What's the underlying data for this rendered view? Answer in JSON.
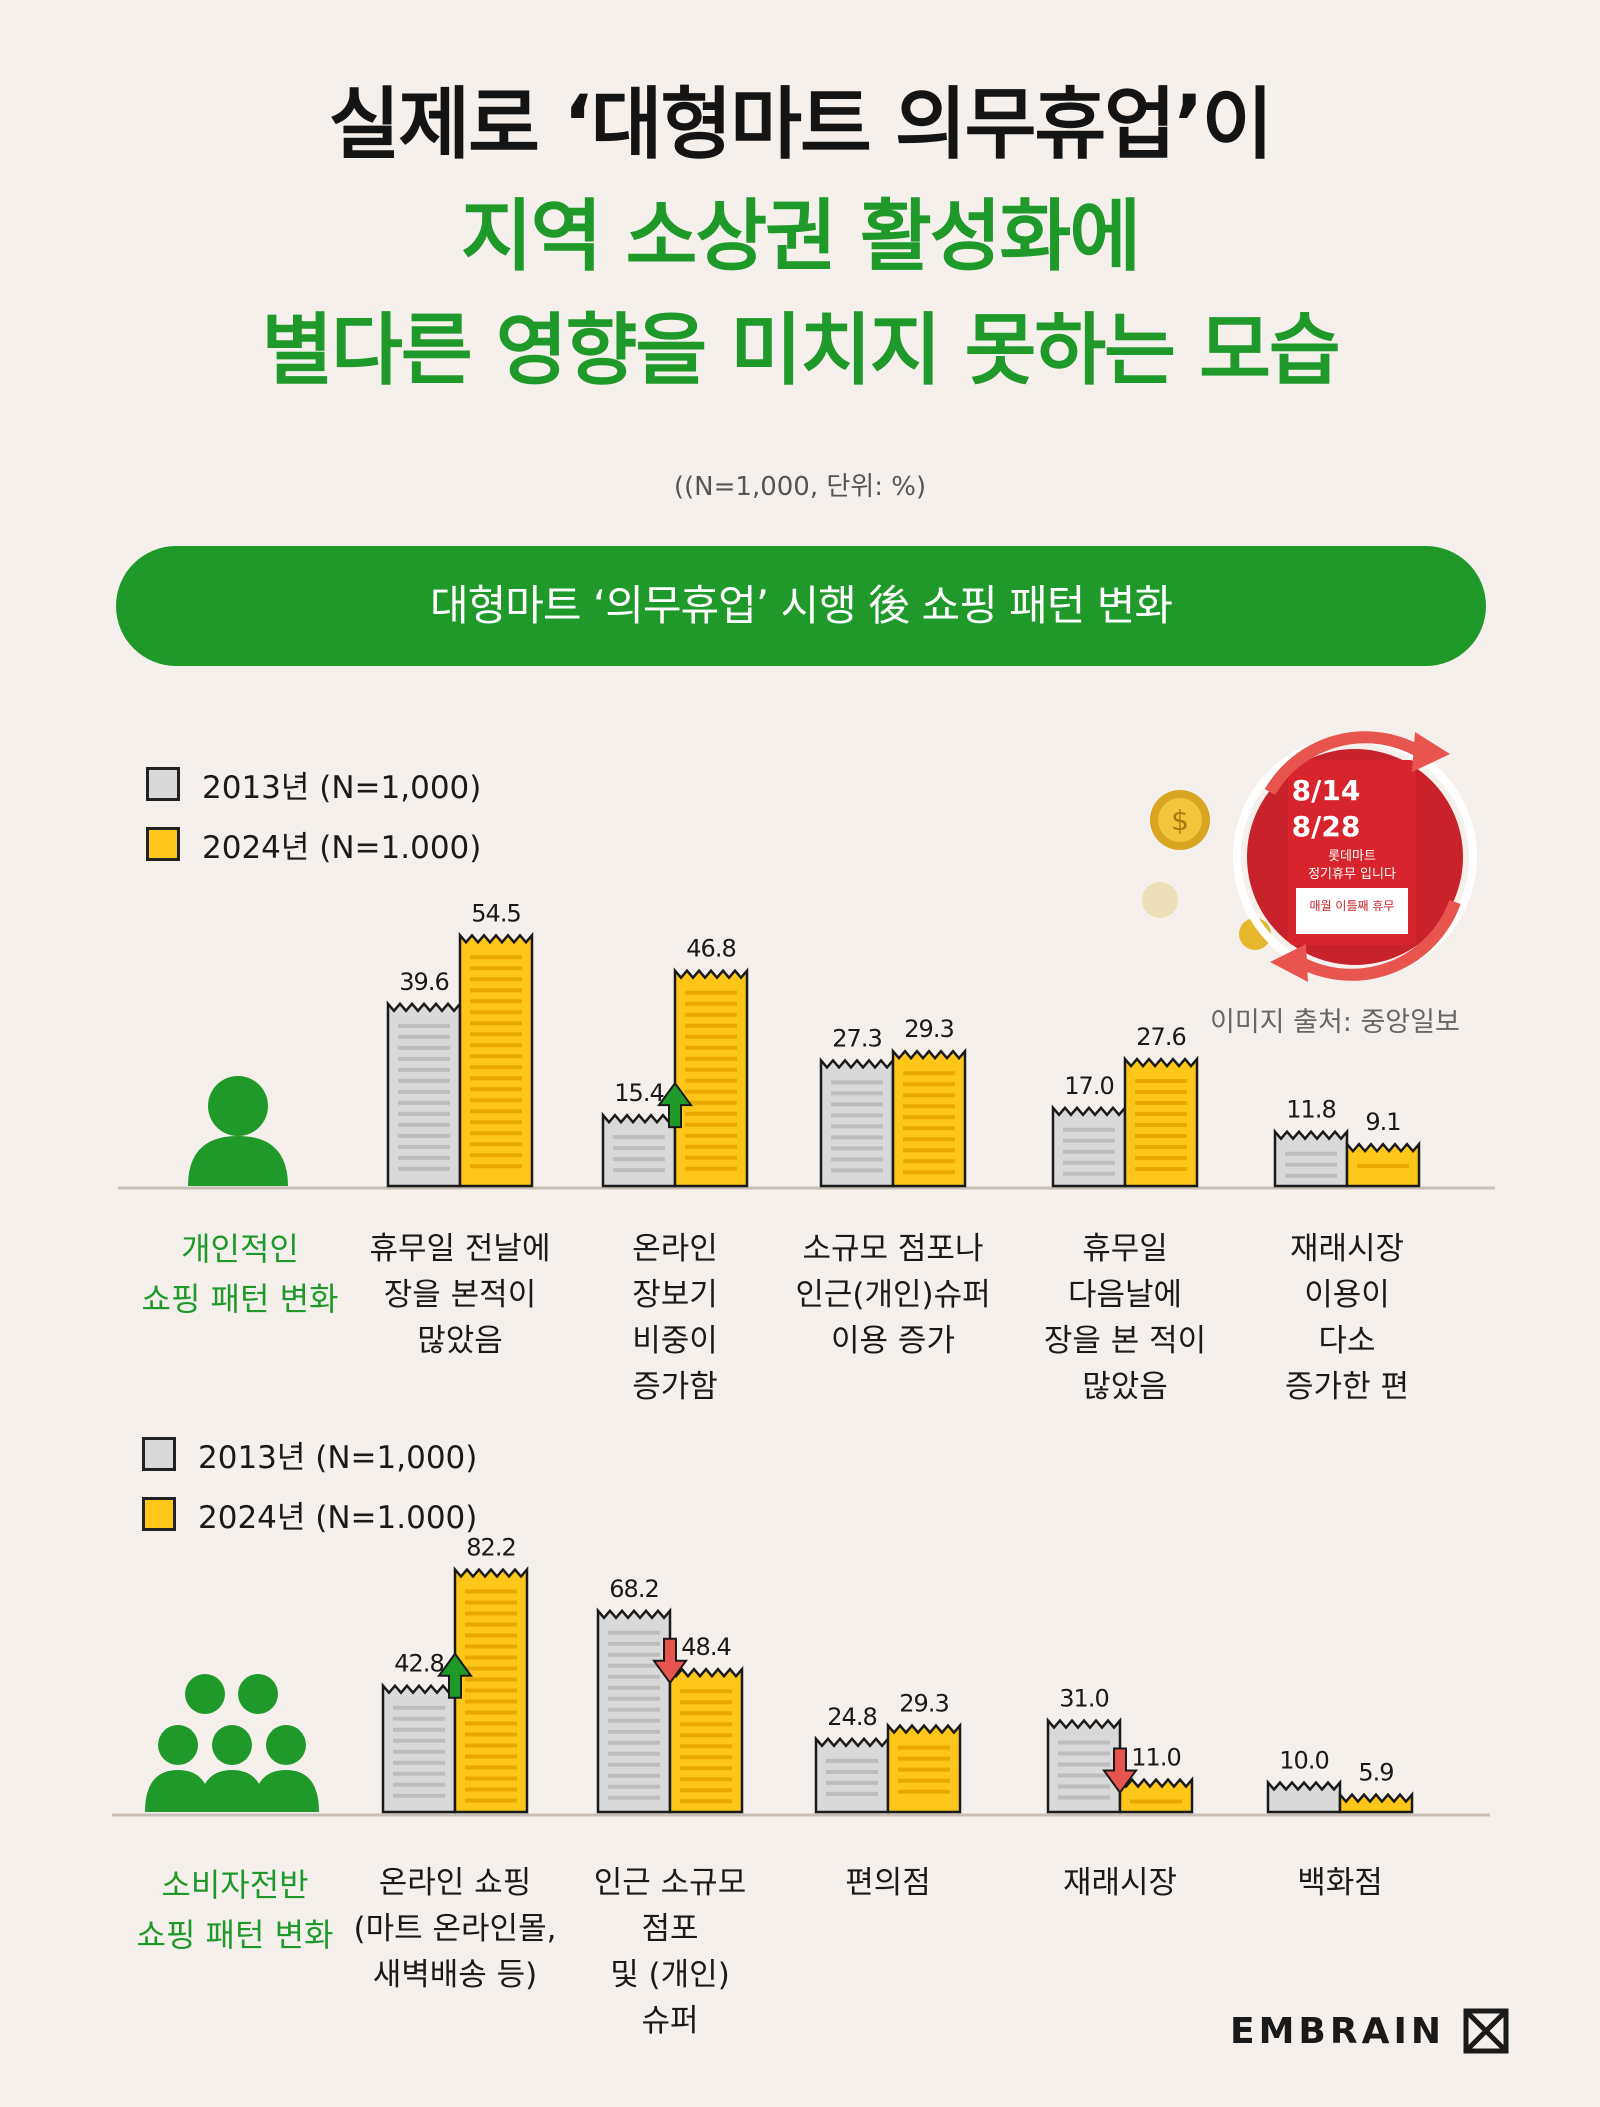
{
  "title": {
    "line1": "실제로 ‘대형마트 의무휴업’이",
    "line2": "지역 소상권 활성화에",
    "line3": "별다른 영향을 미치지 못하는 모습"
  },
  "unit_note": "((N=1,000, 단위: %)",
  "banner": "대형마트 ‘의무휴업’ 시행 後 쇼핑 패턴 변화",
  "image_credit": "이미지 출처: 중앙일보",
  "photo": {
    "line1": "8/14",
    "line2": "8/28",
    "line3": "롯데마트",
    "line4": "정기휴무 입니다",
    "line5": "매월 이틀째 휴무"
  },
  "legend": {
    "item_2013": "2013년 (N=1,000)",
    "item_2024": "2024년 (N=1.000)"
  },
  "logo": "EMBRAIN",
  "colors": {
    "green": "#1f9a2a",
    "series_2013": "#d9d9d9",
    "series_2024": "#ffc61a",
    "up_arrow": "#1f9a2a",
    "down_arrow": "#e8554f"
  },
  "chart_data": [
    {
      "type": "bar",
      "section_label": [
        "개인적인",
        "쇼핑 패턴 변화"
      ],
      "categories": [
        [
          "휴무일 전날에",
          "장을 본적이",
          "많았음"
        ],
        [
          "온라인",
          "장보기",
          "비중이",
          "증가함"
        ],
        [
          "소규모 점포나",
          "인근(개인)슈퍼",
          "이용 증가"
        ],
        [
          "휴무일",
          "다음날에",
          "장을 본 적이",
          "많았음"
        ],
        [
          "재래시장",
          "이용이",
          "다소",
          "증가한 편"
        ]
      ],
      "series": [
        {
          "name": "2013년 (N=1,000)",
          "values": [
            39.6,
            15.4,
            27.3,
            17.0,
            11.8
          ],
          "labels": [
            "39.6",
            "15.4",
            "27.3",
            "17.0",
            "11.8"
          ]
        },
        {
          "name": "2024년 (N=1.000)",
          "values": [
            54.5,
            46.8,
            29.3,
            27.6,
            9.1
          ],
          "labels": [
            "54.5",
            "46.8",
            "29.3",
            "27.6",
            "9.1"
          ]
        }
      ],
      "arrows": [
        "none",
        "up",
        "none",
        "none",
        "none"
      ],
      "legend_position": "top-left"
    },
    {
      "type": "bar",
      "section_label": [
        "소비자전반",
        "쇼핑 패턴 변화"
      ],
      "categories": [
        [
          "온라인 쇼핑",
          "(마트 온라인몰,",
          "새벽배송 등)"
        ],
        [
          "인근 소규모",
          "점포",
          "및 (개인)",
          "슈퍼"
        ],
        [
          "편의점"
        ],
        [
          "재래시장"
        ],
        [
          "백화점"
        ]
      ],
      "series": [
        {
          "name": "2013년 (N=1,000)",
          "values": [
            42.8,
            68.2,
            24.8,
            31.0,
            10.0
          ],
          "labels": [
            "42.8",
            "68.2",
            "24.8",
            "31.0",
            "10.0"
          ]
        },
        {
          "name": "2024년 (N=1.000)",
          "values": [
            82.2,
            48.4,
            29.3,
            11.0,
            5.9
          ],
          "labels": [
            "82.2",
            "48.4",
            "29.3",
            "11.0",
            "5.9"
          ]
        }
      ],
      "arrows": [
        "up",
        "down",
        "none",
        "down",
        "none"
      ],
      "legend_position": "top-left"
    }
  ]
}
